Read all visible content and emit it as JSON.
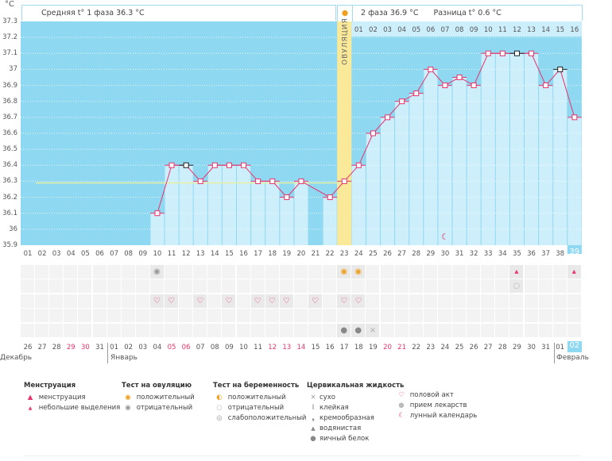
{
  "unit": "°C",
  "header": {
    "phase1": "Средняя t° 1 фаза 36.3 °C",
    "phase2": "2 фаза 36.9 °C",
    "diff": "Разница t° 0.6 °C",
    "ovulation": "ОВУЛЯЦИЯ"
  },
  "colors": {
    "bg": "#8fd8f2",
    "bar": "#cdeefb",
    "line": "#e8336b",
    "ovulation": "#fbe99a",
    "coverline": "#e6f0a0"
  },
  "chart_data": {
    "type": "line",
    "ylim": [
      35.9,
      37.3
    ],
    "yticks": [
      "37.3",
      "37.2",
      "37.1",
      "37",
      "36.9",
      "36.8",
      "36.7",
      "36.6",
      "36.5",
      "36.4",
      "36.3",
      "36.2",
      "36.1",
      "36",
      "35.9"
    ],
    "cycle_days": [
      "01",
      "02",
      "03",
      "04",
      "05",
      "06",
      "07",
      "08",
      "09",
      "10",
      "11",
      "12",
      "13",
      "14",
      "15",
      "16",
      "17",
      "18",
      "19",
      "20",
      "21",
      "22",
      "23",
      "24",
      "25",
      "26",
      "27",
      "28",
      "29",
      "30",
      "31",
      "32",
      "33",
      "34",
      "35",
      "36",
      "37",
      "38",
      "39"
    ],
    "temps": [
      null,
      null,
      null,
      null,
      null,
      null,
      null,
      null,
      null,
      36.1,
      36.4,
      36.4,
      36.3,
      36.4,
      36.4,
      36.4,
      36.3,
      36.3,
      36.2,
      36.3,
      null,
      36.2,
      36.3,
      36.4,
      36.6,
      36.7,
      36.8,
      36.85,
      37.0,
      36.9,
      36.95,
      36.9,
      37.1,
      37.1,
      37.1,
      37.1,
      36.9,
      37.0,
      36.7
    ],
    "black_markers": [
      12,
      35,
      38
    ],
    "coverline": 36.29,
    "ovulation_day": 23,
    "phase2_days": [
      "01",
      "02",
      "03",
      "04",
      "05",
      "06",
      "07",
      "08",
      "09",
      "10",
      "11",
      "12",
      "13",
      "14",
      "15",
      "16"
    ],
    "current_day": 39
  },
  "dates": [
    "26",
    "27",
    "28",
    "29",
    "30",
    "31",
    "01",
    "02",
    "03",
    "04",
    "05",
    "06",
    "07",
    "08",
    "09",
    "10",
    "11",
    "12",
    "13",
    "14",
    "15",
    "16",
    "17",
    "18",
    "19",
    "20",
    "21",
    "22",
    "23",
    "24",
    "25",
    "26",
    "27",
    "28",
    "29",
    "30",
    "31",
    "01",
    "02"
  ],
  "red_dates": [
    3,
    4,
    10,
    11,
    17,
    18,
    19,
    25,
    26,
    38
  ],
  "months": [
    {
      "label": "Декабрь"
    },
    {
      "label": "Январь"
    },
    {
      "label": "Февраль"
    }
  ],
  "marks": {
    "ovulation_test_negative": [
      10
    ],
    "ovulation_test_positive": [
      23,
      24
    ],
    "spotting": [
      35,
      39
    ],
    "pregnancy_negative": [
      35
    ],
    "sex": [
      10,
      11,
      13,
      15,
      17,
      18,
      19,
      21,
      23,
      24
    ],
    "egg_white": [
      23,
      24
    ],
    "dry": [
      25
    ],
    "moon": [
      30
    ]
  },
  "legend": {
    "menstruation": {
      "title": "Менструация",
      "items": [
        "менструация",
        "небольшие выделения"
      ]
    },
    "ovulation_test": {
      "title": "Тест на овуляцию",
      "items": [
        "положительный",
        "отрицательный"
      ]
    },
    "pregnancy_test": {
      "title": "Тест на беременность",
      "items": [
        "положительный",
        "отрицательный",
        "слабоположительный"
      ]
    },
    "cervical": {
      "title": "Цервикальная жидкость",
      "items": [
        "сухо",
        "клейкая",
        "кремообразная",
        "водянистая",
        "яичный белок"
      ]
    },
    "other": {
      "items": [
        "половой акт",
        "прием лекарств",
        "лунный календарь"
      ]
    }
  }
}
